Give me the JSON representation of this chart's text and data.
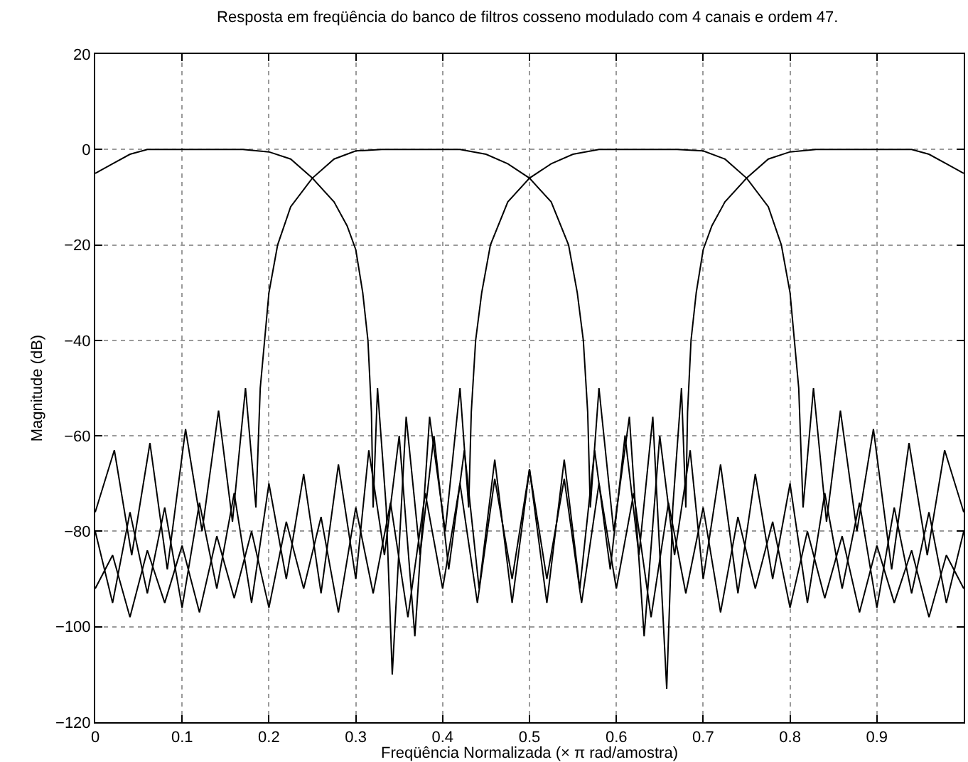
{
  "chart_data": {
    "type": "line",
    "title": "Resposta em freqüência do banco de filtros cosseno modulado com 4 canais e ordem 47.",
    "xlabel": "Freqüência Normalizada (× π rad/amostra)",
    "ylabel": "Magnitude (dB)",
    "xlim": [
      0,
      1
    ],
    "xticks": [
      0,
      0.1,
      0.2,
      0.3,
      0.4,
      0.5,
      0.6,
      0.7,
      0.8,
      0.9
    ],
    "ylim": [
      -120,
      20
    ],
    "yticks": [
      -120,
      -100,
      -80,
      -60,
      -40,
      -20,
      0,
      20
    ],
    "grid": true,
    "series": [
      {
        "color": "#000000",
        "x": [
          0,
          0.02,
          0.04,
          0.06,
          0.1,
          0.17,
          0.2,
          0.225,
          0.25,
          0.275,
          0.29,
          0.3,
          0.308,
          0.314,
          0.318,
          0.32,
          0.325,
          0.335,
          0.342,
          0.358,
          0.374,
          0.39,
          0.407,
          0.425,
          0.442,
          0.46,
          0.48,
          0.5,
          0.52,
          0.54,
          0.56,
          0.58,
          0.6,
          0.62,
          0.64,
          0.66,
          0.68,
          0.7,
          0.72,
          0.74,
          0.76,
          0.78,
          0.8,
          0.82,
          0.84,
          0.86,
          0.88,
          0.9,
          0.92,
          0.94,
          0.96,
          0.98,
          1.0
        ],
        "values": [
          -5,
          -3,
          -1,
          0,
          0,
          0,
          -0.5,
          -2,
          -6,
          -11,
          -16,
          -21,
          -30,
          -40,
          -55,
          -75,
          -50,
          -75,
          -110,
          -56,
          -85,
          -60,
          -88,
          -63,
          -92,
          -65,
          -95,
          -67,
          -90,
          -69,
          -95,
          -70,
          -92,
          -72,
          -98,
          -74,
          -93,
          -75,
          -97,
          -77,
          -92,
          -78,
          -96,
          -80,
          -94,
          -81,
          -97,
          -83,
          -95,
          -84,
          -98,
          -85,
          -92
        ]
      },
      {
        "color": "#000000",
        "x": [
          0,
          0.022,
          0.042,
          0.063,
          0.083,
          0.104,
          0.123,
          0.142,
          0.158,
          0.173,
          0.185,
          0.19,
          0.195,
          0.2,
          0.21,
          0.225,
          0.25,
          0.275,
          0.3,
          0.33,
          0.42,
          0.45,
          0.475,
          0.5,
          0.525,
          0.545,
          0.555,
          0.562,
          0.567,
          0.57,
          0.58,
          0.597,
          0.615,
          0.632,
          0.65,
          0.667,
          0.685,
          0.7,
          0.72,
          0.74,
          0.76,
          0.78,
          0.8,
          0.82,
          0.84,
          0.86,
          0.88,
          0.9,
          0.92,
          0.94,
          0.96,
          0.98,
          1.0
        ],
        "values": [
          -76,
          -63,
          -85,
          -61.5,
          -88,
          -58.6,
          -80,
          -54.7,
          -78,
          -50,
          -75,
          -50,
          -40,
          -30,
          -20,
          -12,
          -6,
          -2,
          -0.3,
          0,
          0,
          -1,
          -3,
          -6,
          -11,
          -20,
          -30,
          -40,
          -55,
          -75,
          -50,
          -80,
          -56,
          -102,
          -60,
          -85,
          -63,
          -90,
          -66,
          -93,
          -68,
          -90,
          -70,
          -95,
          -72,
          -92,
          -74,
          -96,
          -75,
          -93,
          -76,
          -95,
          -80
        ]
      },
      {
        "color": "#000000",
        "x": [
          0,
          0.02,
          0.04,
          0.06,
          0.08,
          0.1,
          0.12,
          0.14,
          0.16,
          0.18,
          0.2,
          0.22,
          0.24,
          0.26,
          0.28,
          0.3,
          0.315,
          0.333,
          0.35,
          0.368,
          0.385,
          0.403,
          0.42,
          0.43,
          0.433,
          0.438,
          0.445,
          0.455,
          0.475,
          0.5,
          0.525,
          0.55,
          0.58,
          0.67,
          0.7,
          0.725,
          0.75,
          0.775,
          0.79,
          0.8,
          0.805,
          0.81,
          0.815,
          0.827,
          0.842,
          0.858,
          0.877,
          0.896,
          0.917,
          0.937,
          0.958,
          0.978,
          1.0
        ],
        "values": [
          -80,
          -95,
          -76,
          -93,
          -75,
          -96,
          -74,
          -92,
          -72,
          -95,
          -70,
          -90,
          -68,
          -93,
          -66,
          -90,
          -63,
          -85,
          -60,
          -102,
          -56,
          -80,
          -50,
          -75,
          -55,
          -40,
          -30,
          -20,
          -11,
          -6,
          -3,
          -1,
          0,
          0,
          -0.3,
          -2,
          -6,
          -12,
          -20,
          -30,
          -40,
          -50,
          -75,
          -50,
          -78,
          -54.7,
          -80,
          -58.6,
          -88,
          -61.5,
          -85,
          -63,
          -76
        ]
      },
      {
        "color": "#000000",
        "x": [
          0,
          0.02,
          0.04,
          0.06,
          0.08,
          0.1,
          0.12,
          0.14,
          0.16,
          0.18,
          0.2,
          0.22,
          0.24,
          0.26,
          0.28,
          0.3,
          0.32,
          0.34,
          0.36,
          0.38,
          0.4,
          0.42,
          0.44,
          0.46,
          0.48,
          0.5,
          0.52,
          0.54,
          0.558,
          0.575,
          0.593,
          0.61,
          0.626,
          0.642,
          0.658,
          0.665,
          0.675,
          0.68,
          0.682,
          0.686,
          0.692,
          0.7,
          0.71,
          0.725,
          0.75,
          0.775,
          0.8,
          0.83,
          0.9,
          0.94,
          0.96,
          0.98,
          1.0
        ],
        "values": [
          -92,
          -85,
          -98,
          -84,
          -95,
          -83,
          -97,
          -81,
          -94,
          -80,
          -96,
          -78,
          -92,
          -77,
          -97,
          -75,
          -93,
          -74,
          -98,
          -72,
          -92,
          -70,
          -95,
          -69,
          -90,
          -67,
          -95,
          -65,
          -92,
          -63,
          -88,
          -60,
          -85,
          -56,
          -113,
          -75,
          -50,
          -75,
          -55,
          -40,
          -30,
          -21,
          -16,
          -11,
          -6,
          -2,
          -0.5,
          0,
          0,
          0,
          -1,
          -3,
          -5
        ]
      }
    ]
  }
}
